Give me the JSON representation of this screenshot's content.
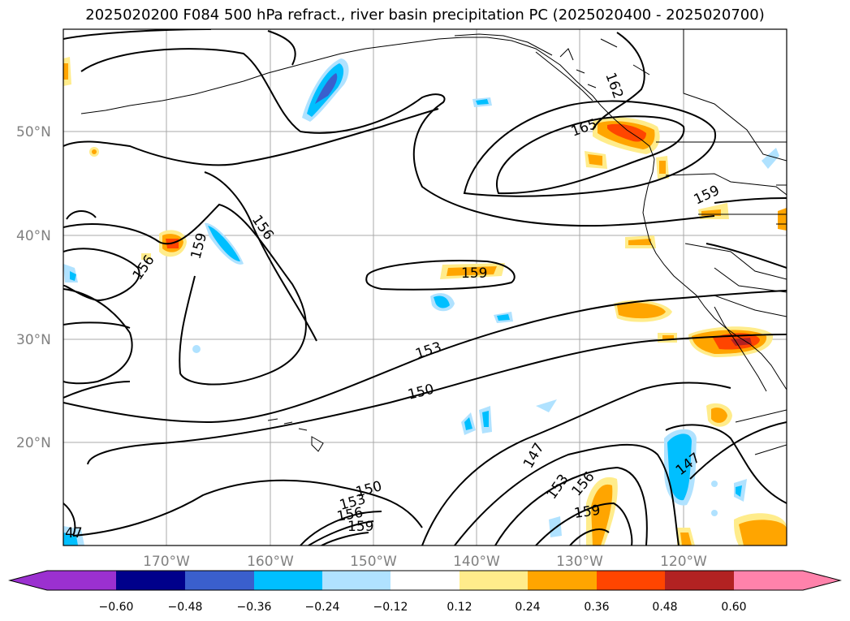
{
  "title": "2025020200 F084 500 hPa refract., river basin precipitation PC (2025020400 - 2025020700)",
  "lat_labels": [
    "50°N",
    "40°N",
    "30°N",
    "20°N"
  ],
  "lon_labels": [
    "170°W",
    "160°W",
    "150°W",
    "140°W",
    "130°W",
    "120°W"
  ],
  "contour_labels": [
    "162",
    "165",
    "159",
    "156",
    "159",
    "156",
    "159",
    "153",
    "150",
    "147",
    "153",
    "156",
    "159",
    "150",
    "153",
    "156",
    "159",
    "147",
    "47"
  ],
  "colorbar": {
    "colors": [
      "#9b30d0",
      "#00008b",
      "#3a5fcd",
      "#00bfff",
      "#b0e2ff",
      "#ffffff",
      "#ffec8b",
      "#ffa500",
      "#ff4500",
      "#b22222",
      "#ff82ab"
    ],
    "ticks": [
      "−0.60",
      "−0.48",
      "−0.36",
      "−0.24",
      "−0.12",
      "0.12",
      "0.24",
      "0.36",
      "0.48",
      "0.60"
    ]
  }
}
